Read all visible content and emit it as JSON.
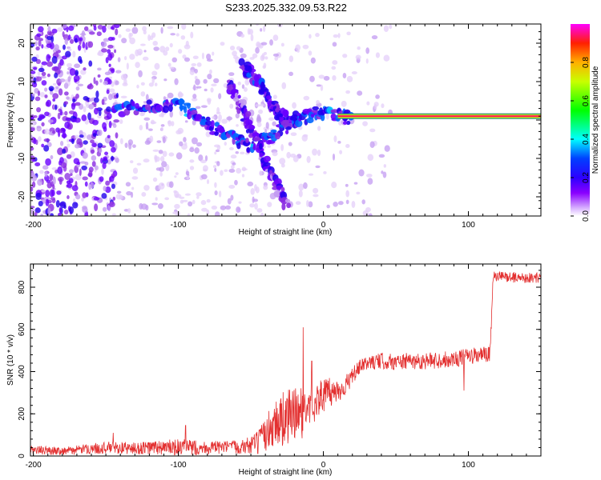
{
  "figure_title": "S233.2025.332.09.53.R22",
  "colors": {
    "snr_line": "#e33030",
    "ridge": "#ff1060",
    "frame": "#000000"
  },
  "colorbar": {
    "label": "Normalized spectral amplitude",
    "range": [
      0.0,
      1.0
    ],
    "ticks": [
      0.0,
      0.2,
      0.4,
      0.6,
      0.8
    ],
    "tick_labels": [
      "0.0",
      "0.2",
      "0.4",
      "0.6",
      "0.8"
    ],
    "colormap": "hsv-rainbow (violet to red)"
  },
  "chart_data": [
    {
      "type": "heatmap",
      "title": "S233.2025.332.09.53.R22",
      "xlabel": "Height of straight line (km)",
      "ylabel": "Frequency (Hz)",
      "xlim": [
        -202,
        150
      ],
      "ylim": [
        -25,
        25
      ],
      "xticks": [
        -200,
        -100,
        0,
        100
      ],
      "xtick_labels": [
        "-200",
        "-100",
        "0",
        "100"
      ],
      "yticks": [
        -20,
        -10,
        0,
        10,
        20
      ],
      "ytick_labels": [
        "-20",
        "-10",
        "0",
        "10",
        "20"
      ],
      "features": [
        {
          "name": "main-doppler-band",
          "x": [
            -145,
            -130,
            -115,
            -100,
            -90,
            -80,
            -70,
            -60,
            -50,
            -40,
            -30,
            -20,
            -10,
            0,
            10,
            20
          ],
          "y": [
            3,
            3,
            4,
            4,
            2,
            -1,
            -3,
            -5,
            -7,
            -5,
            -3,
            0,
            1,
            2,
            1,
            0.5
          ],
          "amplitude": 0.3
        },
        {
          "name": "multipath-branch-1",
          "x": [
            -55,
            -50,
            -45,
            -40,
            -35,
            -30,
            -25
          ],
          "y": [
            14,
            12,
            10,
            7,
            4,
            1,
            0
          ],
          "amplitude": 0.25
        },
        {
          "name": "multipath-branch-2",
          "x": [
            -65,
            -60,
            -55,
            -50,
            -45,
            -40,
            -35,
            -30,
            -25
          ],
          "y": [
            10,
            6,
            2,
            -2,
            -6,
            -11,
            -15,
            -19,
            -22
          ],
          "amplitude": 0.2
        },
        {
          "name": "direct-signal-ridge",
          "x": [
            10,
            150
          ],
          "y": [
            1,
            1
          ],
          "amplitude": 1.0
        }
      ]
    },
    {
      "type": "line",
      "title": "",
      "xlabel": "Height of straight line (km)",
      "ylabel": "SNR (10 * v/v)",
      "xlim": [
        -202,
        150
      ],
      "ylim": [
        0,
        910
      ],
      "xticks": [
        -200,
        -100,
        0,
        100
      ],
      "xtick_labels": [
        "-200",
        "-100",
        "0",
        "100"
      ],
      "yticks": [
        0,
        200,
        400,
        600,
        800
      ],
      "ytick_labels": [
        "0",
        "200",
        "400",
        "600",
        "800"
      ],
      "series": [
        {
          "name": "SNR",
          "x": [
            -202,
            -190,
            -175,
            -160,
            -145,
            -130,
            -115,
            -100,
            -85,
            -70,
            -55,
            -45,
            -40,
            -35,
            -30,
            -25,
            -20,
            -15,
            -10,
            -5,
            0,
            5,
            10,
            15,
            20,
            25,
            30,
            40,
            50,
            60,
            70,
            80,
            90,
            100,
            110,
            115,
            117,
            125,
            135,
            150
          ],
          "y": [
            30,
            25,
            25,
            35,
            40,
            35,
            40,
            40,
            40,
            40,
            45,
            60,
            100,
            150,
            170,
            180,
            200,
            200,
            230,
            260,
            290,
            300,
            310,
            330,
            380,
            420,
            440,
            450,
            445,
            450,
            450,
            455,
            460,
            470,
            480,
            480,
            850,
            850,
            845,
            845
          ],
          "noise": [
            20,
            20,
            20,
            25,
            30,
            30,
            35,
            40,
            35,
            30,
            35,
            60,
            80,
            110,
            130,
            140,
            130,
            120,
            100,
            90,
            80,
            70,
            60,
            50,
            40,
            35,
            30,
            40,
            40,
            40,
            40,
            40,
            40,
            40,
            40,
            40,
            25,
            25,
            25,
            25
          ],
          "spikes": [
            {
              "x": -145,
              "y": 110
            },
            {
              "x": -95,
              "y": 145
            },
            {
              "x": -14,
              "y": 610
            },
            {
              "x": -8,
              "y": 450
            },
            {
              "x": 97,
              "y": 310
            }
          ]
        }
      ]
    }
  ]
}
